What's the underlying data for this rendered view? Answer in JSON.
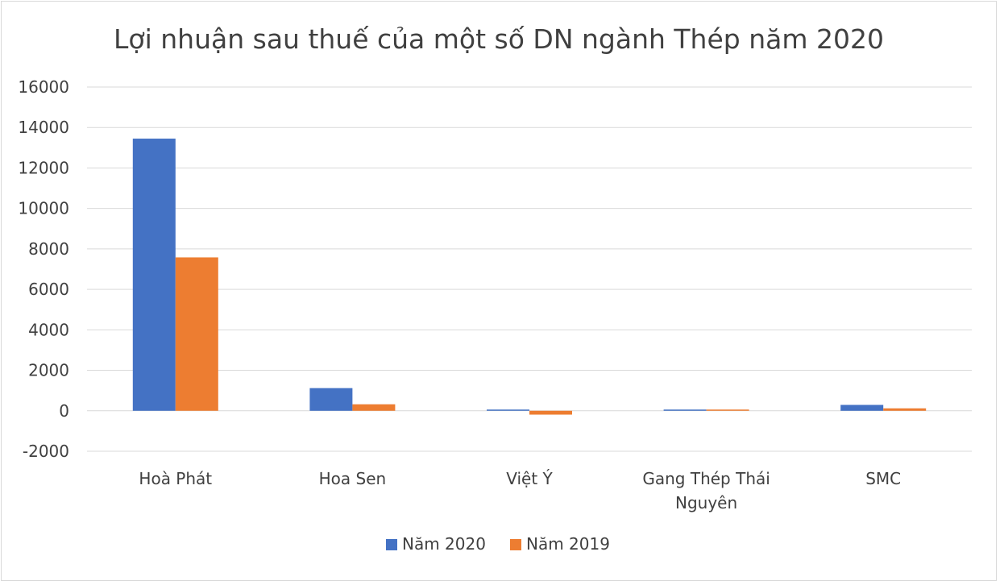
{
  "chart_data": {
    "type": "bar",
    "title": "Lợi nhuận sau thuế của một số DN ngành Thép năm 2020",
    "xlabel": "",
    "ylabel": "",
    "categories": [
      [
        "Hoà Phát"
      ],
      [
        "Hoa Sen"
      ],
      [
        "Việt Ý"
      ],
      [
        "Gang Thép Thái",
        "Nguyên"
      ],
      [
        "SMC"
      ]
    ],
    "series": [
      {
        "name": "Năm 2020",
        "color": "#4472c4",
        "values": [
          13450,
          1120,
          20,
          10,
          290
        ]
      },
      {
        "name": "Năm 2019",
        "color": "#ed7d31",
        "values": [
          7580,
          320,
          -190,
          20,
          120
        ]
      }
    ],
    "ylim": [
      -2000,
      16000
    ],
    "yticks": [
      -2000,
      0,
      2000,
      4000,
      6000,
      8000,
      10000,
      12000,
      14000,
      16000
    ],
    "grid": true,
    "legend": "bottom-center"
  }
}
